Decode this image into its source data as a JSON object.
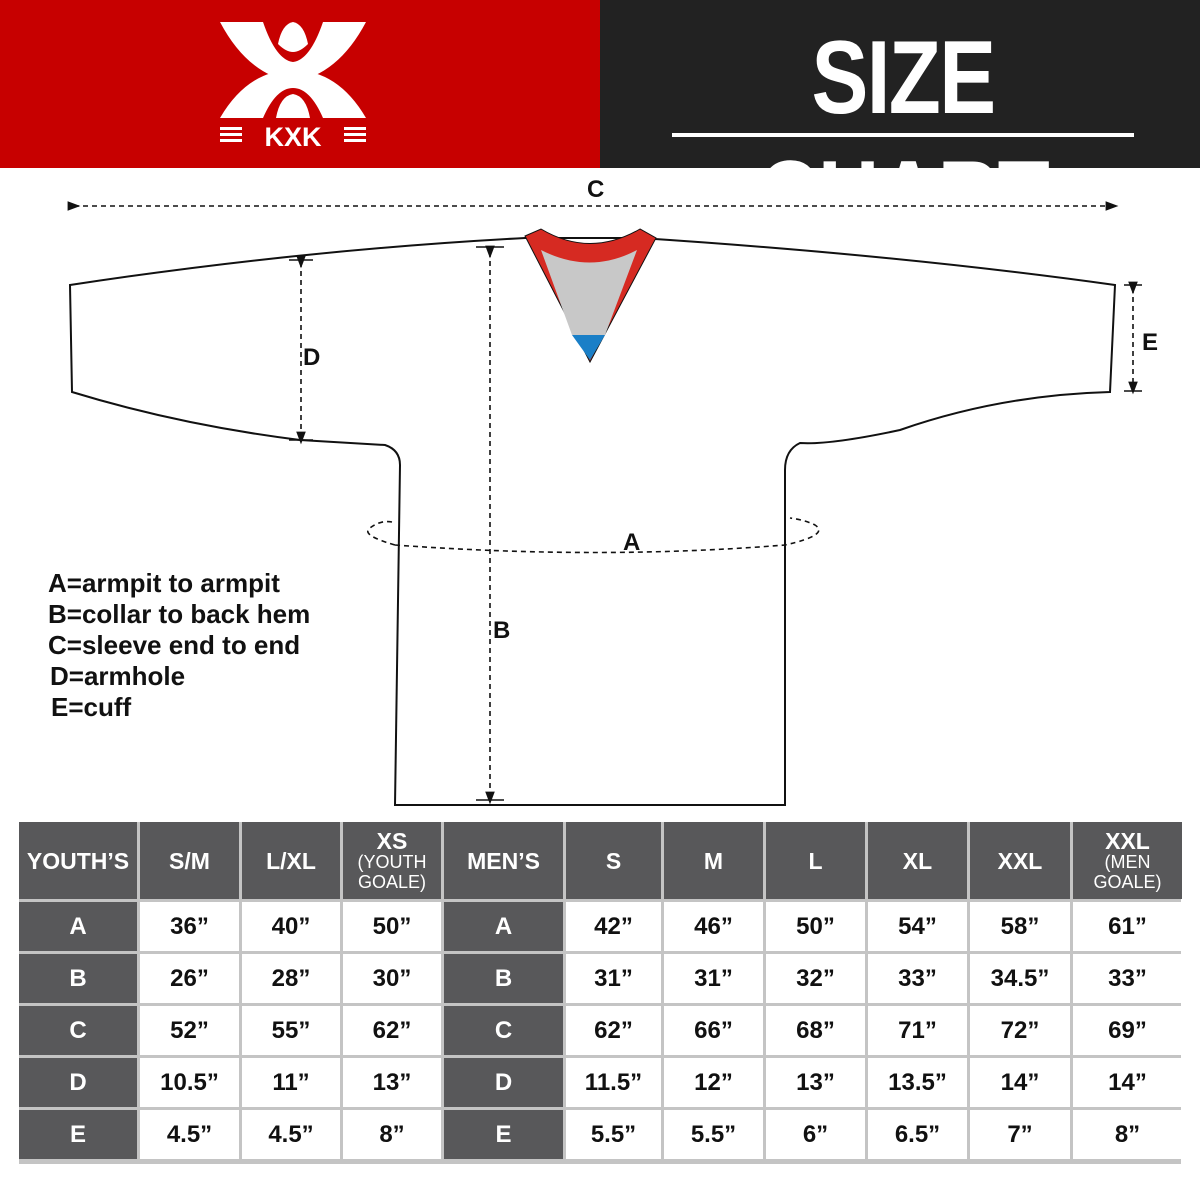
{
  "brand": {
    "logo_text": "KXK",
    "colors": {
      "red": "#c70000",
      "dark": "#222222",
      "table_header": "#58585a"
    }
  },
  "header": {
    "title": "SIZE CHART"
  },
  "diagram": {
    "labels": {
      "a": "A",
      "b": "B",
      "c": "C",
      "d": "D",
      "e": "E"
    },
    "legend": [
      "A=armpit to armpit",
      "B=collar to back hem",
      "C=sleeve end to end",
      "D=armhole",
      "E=cuff"
    ]
  },
  "table": {
    "youth": {
      "header": "YOUTH’S",
      "columns": [
        {
          "size": "S/M",
          "note": ""
        },
        {
          "size": "L/XL",
          "note": ""
        },
        {
          "size": "XS",
          "note_line1": "(YOUTH",
          "note_line2": "GOALE)"
        }
      ]
    },
    "men": {
      "header": "MEN’S",
      "columns": [
        {
          "size": "S"
        },
        {
          "size": "M"
        },
        {
          "size": "L"
        },
        {
          "size": "XL"
        },
        {
          "size": "XXL"
        },
        {
          "size": "XXL",
          "note_line1": "(MEN",
          "note_line2": "GOALE)"
        }
      ]
    },
    "rows": [
      {
        "label": "A",
        "youth": [
          "36”",
          "40”",
          "50”"
        ],
        "men": [
          "42”",
          "46”",
          "50”",
          "54”",
          "58”",
          "61”"
        ]
      },
      {
        "label": "B",
        "youth": [
          "26”",
          "28”",
          "30”"
        ],
        "men": [
          "31”",
          "31”",
          "32”",
          "33”",
          "34.5”",
          "33”"
        ]
      },
      {
        "label": "C",
        "youth": [
          "52”",
          "55”",
          "62”"
        ],
        "men": [
          "62”",
          "66”",
          "68”",
          "71”",
          "72”",
          "69”"
        ]
      },
      {
        "label": "D",
        "youth": [
          "10.5”",
          "11”",
          "13”"
        ],
        "men": [
          "11.5”",
          "12”",
          "13”",
          "13.5”",
          "14”",
          "14”"
        ]
      },
      {
        "label": "E",
        "youth": [
          "4.5”",
          "4.5”",
          "8”"
        ],
        "men": [
          "5.5”",
          "5.5”",
          "6”",
          "6.5”",
          "7”",
          "8”"
        ]
      }
    ]
  }
}
